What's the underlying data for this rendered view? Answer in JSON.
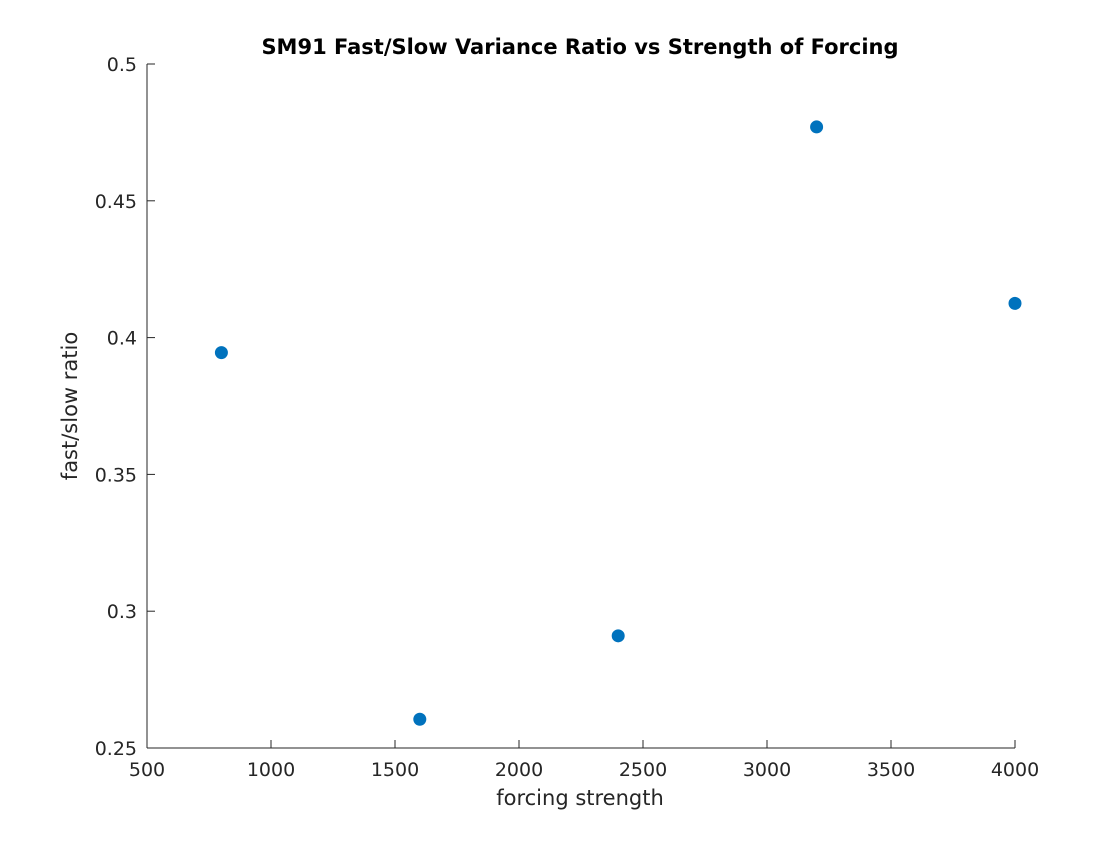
{
  "chart_data": {
    "type": "scatter",
    "title": "SM91 Fast/Slow Variance Ratio vs Strength of Forcing",
    "xlabel": "forcing strength",
    "ylabel": "fast/slow ratio",
    "xlim": [
      500,
      4000
    ],
    "ylim": [
      0.25,
      0.5
    ],
    "xticks": [
      500,
      1000,
      1500,
      2000,
      2500,
      3000,
      3500,
      4000
    ],
    "xtick_labels": [
      "500",
      "1000",
      "1500",
      "2000",
      "2500",
      "3000",
      "3500",
      "4000"
    ],
    "yticks": [
      0.25,
      0.3,
      0.35,
      0.4,
      0.45,
      0.5
    ],
    "ytick_labels": [
      "0.25",
      "0.3",
      "0.35",
      "0.4",
      "0.45",
      "0.5"
    ],
    "grid": false,
    "marker_color": "#0072BD",
    "series": [
      {
        "x": [
          800,
          1600,
          2400,
          3200,
          4000
        ],
        "y": [
          0.3945,
          0.2605,
          0.291,
          0.477,
          0.4125
        ]
      }
    ]
  }
}
